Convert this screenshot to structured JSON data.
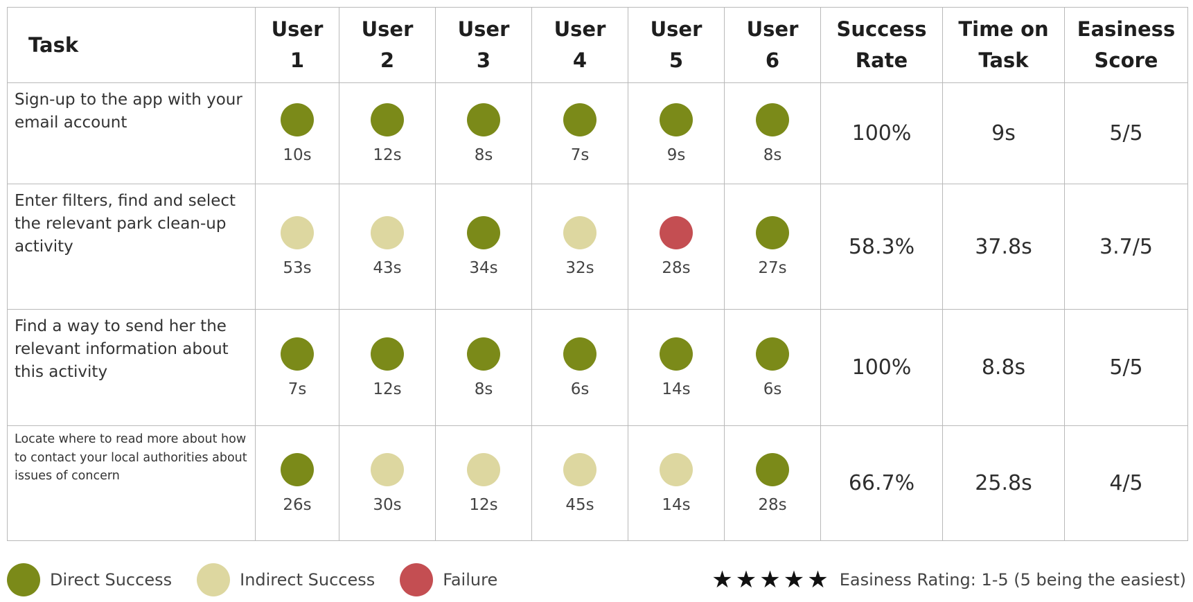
{
  "colors": {
    "direct_success": "#7b8a19",
    "indirect_success": "#ddd7a0",
    "failure": "#c44e52"
  },
  "header": {
    "task": "Task",
    "users": [
      {
        "line1": "User",
        "line2": "1"
      },
      {
        "line1": "User",
        "line2": "2"
      },
      {
        "line1": "User",
        "line2": "3"
      },
      {
        "line1": "User",
        "line2": "4"
      },
      {
        "line1": "User",
        "line2": "5"
      },
      {
        "line1": "User",
        "line2": "6"
      }
    ],
    "success_rate": {
      "line1": "Success",
      "line2": "Rate"
    },
    "time_on_task": {
      "line1": "Time on",
      "line2": "Task"
    },
    "easiness_score": {
      "line1": "Easiness",
      "line2": "Score"
    }
  },
  "rows": [
    {
      "task": "Sign-up to the app with your email account",
      "results": [
        {
          "status": "direct",
          "time": "10s"
        },
        {
          "status": "direct",
          "time": "12s"
        },
        {
          "status": "direct",
          "time": "8s"
        },
        {
          "status": "direct",
          "time": "7s"
        },
        {
          "status": "direct",
          "time": "9s"
        },
        {
          "status": "direct",
          "time": "8s"
        }
      ],
      "success_rate": "100%",
      "time_on_task": "9s",
      "easiness_score": "5/5"
    },
    {
      "task": "Enter filters, find and select the relevant park clean-up activity",
      "results": [
        {
          "status": "indirect",
          "time": "53s"
        },
        {
          "status": "indirect",
          "time": "43s"
        },
        {
          "status": "direct",
          "time": "34s"
        },
        {
          "status": "indirect",
          "time": "32s"
        },
        {
          "status": "failure",
          "time": "28s"
        },
        {
          "status": "direct",
          "time": "27s"
        }
      ],
      "success_rate": "58.3%",
      "time_on_task": "37.8s",
      "easiness_score": "3.7/5"
    },
    {
      "task": "Find a way to send her the relevant information about this activity",
      "results": [
        {
          "status": "direct",
          "time": "7s"
        },
        {
          "status": "direct",
          "time": "12s"
        },
        {
          "status": "direct",
          "time": "8s"
        },
        {
          "status": "direct",
          "time": "6s"
        },
        {
          "status": "direct",
          "time": "14s"
        },
        {
          "status": "direct",
          "time": "6s"
        }
      ],
      "success_rate": "100%",
      "time_on_task": "8.8s",
      "easiness_score": "5/5"
    },
    {
      "task": "Locate where to read more about how to contact your local authorities about issues of concern",
      "results": [
        {
          "status": "direct",
          "time": "26s"
        },
        {
          "status": "indirect",
          "time": "30s"
        },
        {
          "status": "indirect",
          "time": "12s"
        },
        {
          "status": "indirect",
          "time": "45s"
        },
        {
          "status": "indirect",
          "time": "14s"
        },
        {
          "status": "direct",
          "time": "28s"
        }
      ],
      "success_rate": "66.7%",
      "time_on_task": "25.8s",
      "easiness_score": "4/5"
    }
  ],
  "legend": [
    {
      "key": "direct",
      "label": "Direct Success"
    },
    {
      "key": "indirect",
      "label": "Indirect Success"
    },
    {
      "key": "failure",
      "label": "Failure"
    }
  ],
  "rating": {
    "stars": 5,
    "label": "Easiness Rating: 1-5 (5 being the easiest)"
  }
}
